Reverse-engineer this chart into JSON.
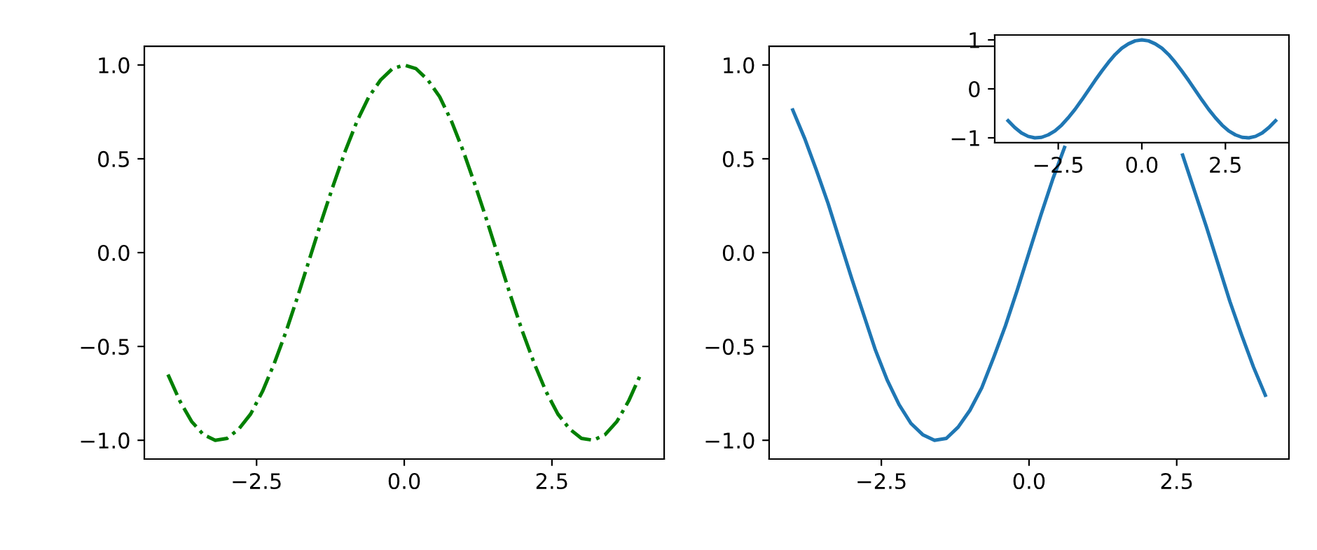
{
  "chart_data": [
    {
      "type": "line",
      "x": [
        -4,
        -3.8,
        -3.6,
        -3.4,
        -3.2,
        -3.0,
        -2.8,
        -2.6,
        -2.4,
        -2.2,
        -2.0,
        -1.8,
        -1.6,
        -1.4,
        -1.2,
        -1.0,
        -0.8,
        -0.6,
        -0.4,
        -0.2,
        0,
        0.2,
        0.4,
        0.6,
        0.8,
        1.0,
        1.2,
        1.4,
        1.6,
        1.8,
        2.0,
        2.2,
        2.4,
        2.6,
        2.8,
        3.0,
        3.2,
        3.4,
        3.6,
        3.8,
        4
      ],
      "series": [
        {
          "color": "#008000",
          "line_style": "dashdot",
          "values": [
            -0.65,
            -0.79,
            -0.9,
            -0.97,
            -1.0,
            -0.99,
            -0.94,
            -0.86,
            -0.74,
            -0.59,
            -0.42,
            -0.23,
            -0.03,
            0.17,
            0.36,
            0.54,
            0.7,
            0.83,
            0.92,
            0.98,
            1.0,
            0.98,
            0.92,
            0.83,
            0.7,
            0.54,
            0.36,
            0.17,
            -0.03,
            -0.23,
            -0.42,
            -0.59,
            -0.74,
            -0.86,
            -0.94,
            -0.99,
            -1.0,
            -0.97,
            -0.9,
            -0.79,
            -0.65
          ]
        }
      ],
      "xlim": [
        -4.4,
        4.4
      ],
      "ylim": [
        -1.1,
        1.1
      ],
      "xticks": [
        {
          "value": -2.5,
          "label": "−2.5"
        },
        {
          "value": 0,
          "label": "0.0"
        },
        {
          "value": 2.5,
          "label": "2.5"
        }
      ],
      "yticks": [
        {
          "value": -1,
          "label": "−1.0"
        },
        {
          "value": -0.5,
          "label": "−0.5"
        },
        {
          "value": 0,
          "label": "0.0"
        },
        {
          "value": 0.5,
          "label": "0.5"
        },
        {
          "value": 1,
          "label": "1.0"
        }
      ]
    },
    {
      "type": "line",
      "x": [
        -4,
        -3.8,
        -3.6,
        -3.4,
        -3.2,
        -3.0,
        -2.8,
        -2.6,
        -2.4,
        -2.2,
        -2.0,
        -1.8,
        -1.6,
        -1.4,
        -1.2,
        -1.0,
        -0.8,
        -0.6,
        -0.4,
        -0.2,
        0,
        0.2,
        0.4,
        0.6,
        0.8,
        1.0,
        1.2,
        1.4,
        1.6,
        1.8,
        2.0,
        2.2,
        2.4,
        2.6,
        2.8,
        3.0,
        3.2,
        3.4,
        3.6,
        3.8,
        4
      ],
      "series": [
        {
          "color": "#1f77b4",
          "line_style": "solid",
          "values": [
            0.76,
            0.61,
            0.44,
            0.26,
            0.06,
            -0.14,
            -0.33,
            -0.52,
            -0.68,
            -0.81,
            -0.91,
            -0.97,
            -1.0,
            -0.99,
            -0.93,
            -0.84,
            -0.72,
            -0.56,
            -0.39,
            -0.2,
            0,
            0.2,
            0.39,
            0.56,
            null,
            null,
            null,
            null,
            null,
            null,
            null,
            null,
            null,
            0.52,
            0.33,
            0.14,
            -0.06,
            -0.26,
            -0.44,
            -0.61,
            -0.76
          ]
        }
      ],
      "xlim": [
        -4.4,
        4.4
      ],
      "ylim": [
        -1.1,
        1.1
      ],
      "xticks": [
        {
          "value": -2.5,
          "label": "−2.5"
        },
        {
          "value": 0,
          "label": "0.0"
        },
        {
          "value": 2.5,
          "label": "2.5"
        }
      ],
      "yticks": [
        {
          "value": -1,
          "label": "−1.0"
        },
        {
          "value": -0.5,
          "label": "−0.5"
        },
        {
          "value": 0,
          "label": "0.0"
        },
        {
          "value": 0.5,
          "label": "0.5"
        },
        {
          "value": 1,
          "label": "1.0"
        }
      ]
    },
    {
      "type": "line",
      "x": [
        -4,
        -3.8,
        -3.6,
        -3.4,
        -3.2,
        -3.0,
        -2.8,
        -2.6,
        -2.4,
        -2.2,
        -2.0,
        -1.8,
        -1.6,
        -1.4,
        -1.2,
        -1.0,
        -0.8,
        -0.6,
        -0.4,
        -0.2,
        0,
        0.2,
        0.4,
        0.6,
        0.8,
        1.0,
        1.2,
        1.4,
        1.6,
        1.8,
        2.0,
        2.2,
        2.4,
        2.6,
        2.8,
        3.0,
        3.2,
        3.4,
        3.6,
        3.8,
        4
      ],
      "series": [
        {
          "color": "#1f77b4",
          "line_style": "solid",
          "values": [
            -0.65,
            -0.79,
            -0.9,
            -0.97,
            -1.0,
            -0.99,
            -0.94,
            -0.86,
            -0.74,
            -0.59,
            -0.42,
            -0.23,
            -0.03,
            0.17,
            0.36,
            0.54,
            0.7,
            0.83,
            0.92,
            0.98,
            1.0,
            0.98,
            0.92,
            0.83,
            0.7,
            0.54,
            0.36,
            0.17,
            -0.03,
            -0.23,
            -0.42,
            -0.59,
            -0.74,
            -0.86,
            -0.94,
            -0.99,
            -1.0,
            -0.97,
            -0.9,
            -0.79,
            -0.65
          ]
        }
      ],
      "xlim": [
        -4.4,
        4.4
      ],
      "ylim": [
        -1.1,
        1.1
      ],
      "xticks": [
        {
          "value": -2.5,
          "label": "−2.5"
        },
        {
          "value": 0,
          "label": "0.0"
        },
        {
          "value": 2.5,
          "label": "2.5"
        }
      ],
      "yticks": [
        {
          "value": -1,
          "label": "−1"
        },
        {
          "value": 0,
          "label": "0"
        },
        {
          "value": 1,
          "label": "1"
        }
      ]
    }
  ]
}
